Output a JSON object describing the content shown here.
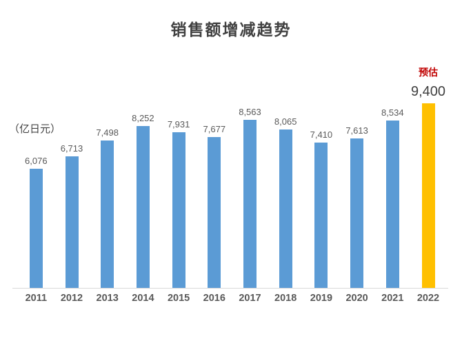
{
  "chart_data": {
    "type": "bar",
    "title": "销售额增减趋势",
    "unit_label": "（亿日元）",
    "annotation": "预估",
    "categories": [
      "2011",
      "2012",
      "2013",
      "2014",
      "2015",
      "2016",
      "2017",
      "2018",
      "2019",
      "2020",
      "2021",
      "2022"
    ],
    "values": [
      6076,
      6713,
      7498,
      8252,
      7931,
      7677,
      8563,
      8065,
      7410,
      7613,
      8534,
      9400
    ],
    "labels": [
      "6,076",
      "6,713",
      "7,498",
      "8,252",
      "7,931",
      "7,677",
      "8,563",
      "8,065",
      "7,410",
      "7,613",
      "8,534",
      "9,400"
    ],
    "highlight_index": 11,
    "xlabel": "",
    "ylabel": "（亿日元）",
    "ylim": [
      0,
      9400
    ],
    "grid": false,
    "legend": "none",
    "colors": {
      "bar": "#5B9BD5",
      "highlight_bar": "#FFC000",
      "annotation_text": "#C00000",
      "value_label": "#595959",
      "highlight_value_label": "#3f3f3f",
      "title_text": "#404040",
      "axis_line": "#d9d9d9",
      "category_label": "#595959"
    }
  }
}
